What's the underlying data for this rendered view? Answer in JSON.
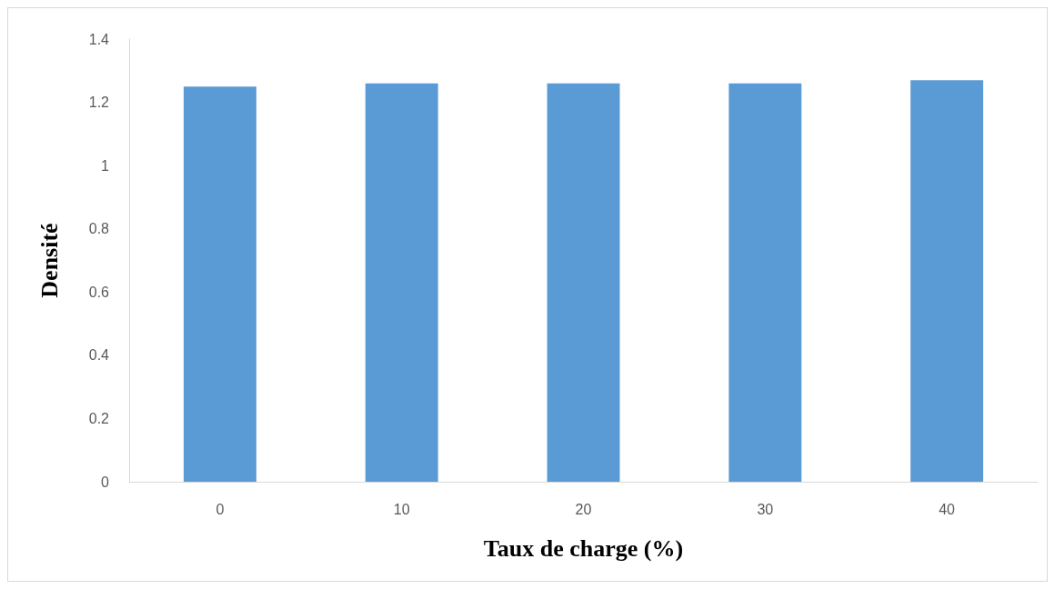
{
  "chart_data": {
    "type": "bar",
    "xlabel": "Taux de charge (%)",
    "ylabel": "Densité",
    "categories": [
      "0",
      "10",
      "20",
      "30",
      "40"
    ],
    "values": [
      1.25,
      1.26,
      1.26,
      1.26,
      1.27
    ],
    "color": "#5b9bd5",
    "ylim": [
      0,
      1.4
    ],
    "yticks": [
      0,
      0.2,
      0.4,
      0.6,
      0.8,
      1,
      1.2,
      1.4
    ],
    "grid": false
  }
}
